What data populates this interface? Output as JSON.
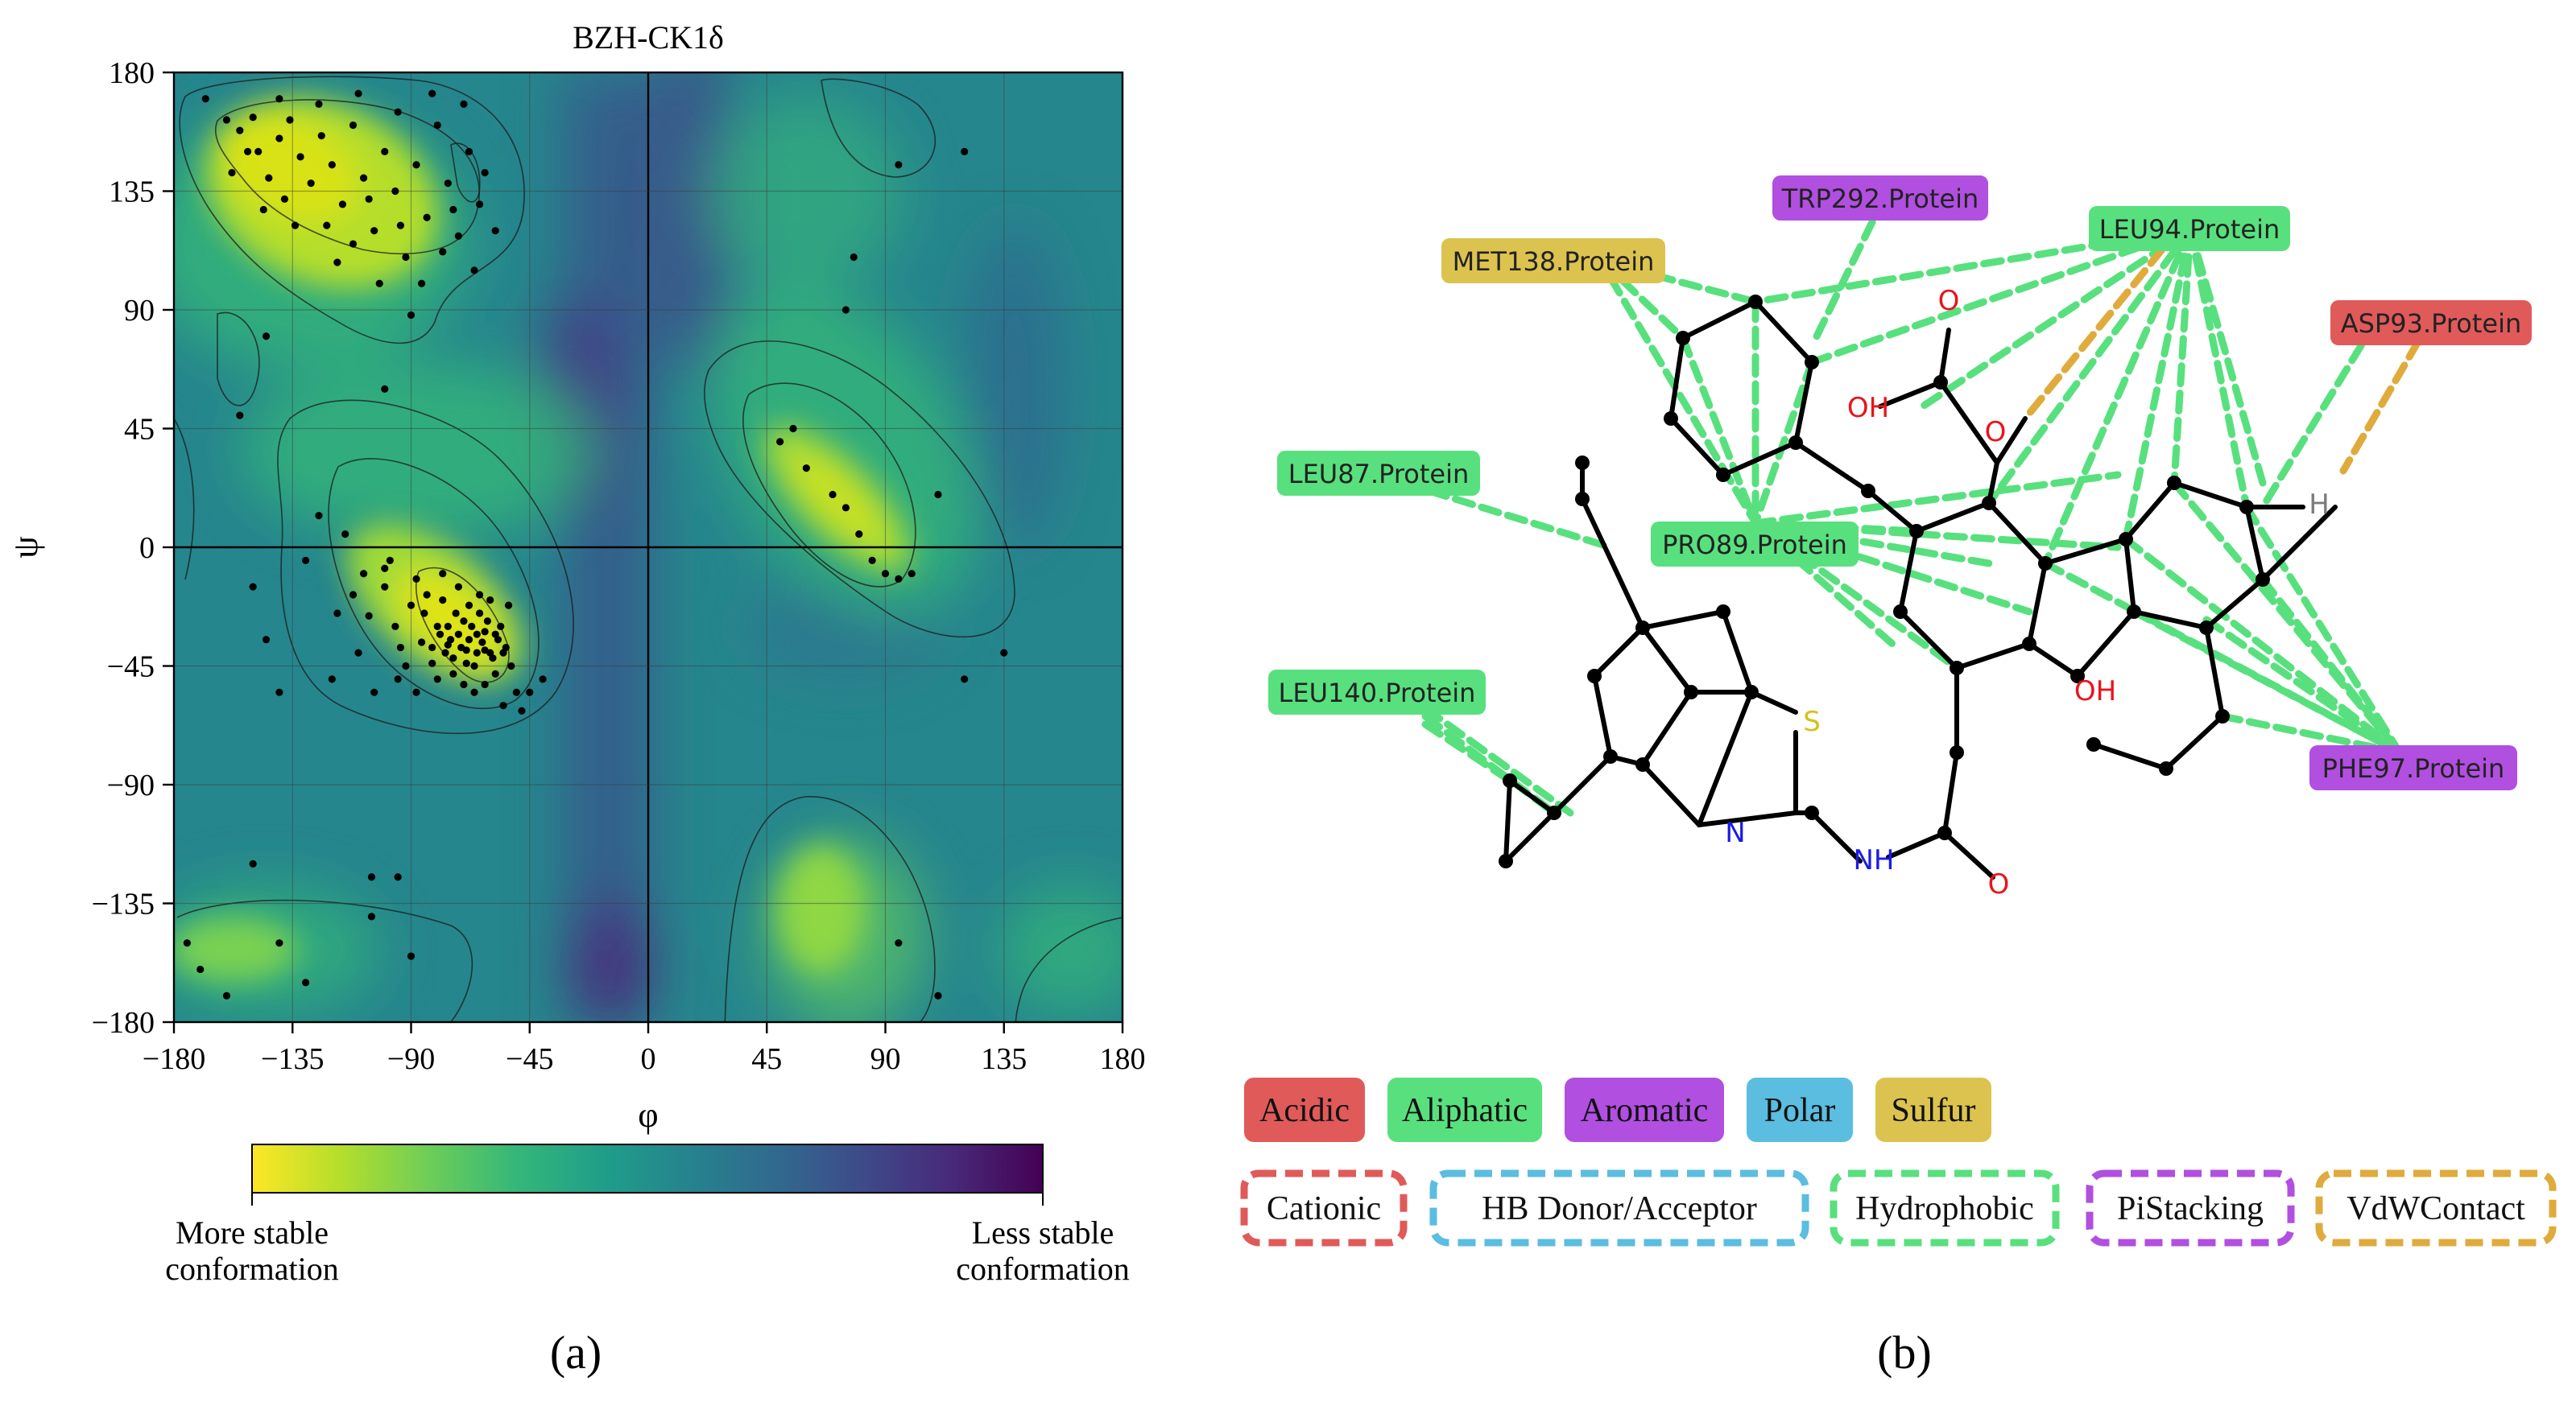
{
  "panel_a": {
    "title": "BZH-CK1δ",
    "caption": "(a)",
    "colorbar_left_label": [
      "More stable",
      "conformation"
    ],
    "colorbar_right_label": [
      "Less stable",
      "conformation"
    ],
    "colorbar_colors": [
      "#fde725",
      "#b5de2b",
      "#6ece58",
      "#35b779",
      "#1f9e89",
      "#26828e",
      "#31688e",
      "#3e4989",
      "#482878",
      "#440154"
    ],
    "chart_data": {
      "type": "scatter",
      "xlabel": "φ",
      "ylabel": "ψ",
      "xlim": [
        -180,
        180
      ],
      "ylim": [
        -180,
        180
      ],
      "xticks": [
        -180,
        -135,
        -90,
        -45,
        0,
        45,
        90,
        135,
        180
      ],
      "yticks": [
        -180,
        -135,
        -90,
        -45,
        0,
        45,
        90,
        135,
        180
      ],
      "xtick_labels": [
        "−180",
        "−135",
        "−90",
        "−45",
        "0",
        "45",
        "90",
        "135",
        "180"
      ],
      "ytick_labels": [
        "−180",
        "−135",
        "−90",
        "−45",
        "0",
        "45",
        "90",
        "135",
        "180"
      ],
      "grid": true,
      "points": [
        [
          -168,
          170
        ],
        [
          -160,
          162
        ],
        [
          -155,
          158
        ],
        [
          -150,
          163
        ],
        [
          -148,
          150
        ],
        [
          -144,
          140
        ],
        [
          -140,
          155
        ],
        [
          -136,
          162
        ],
        [
          -132,
          148
        ],
        [
          -128,
          138
        ],
        [
          -124,
          156
        ],
        [
          -120,
          145
        ],
        [
          -116,
          130
        ],
        [
          -112,
          160
        ],
        [
          -108,
          140
        ],
        [
          -104,
          120
        ],
        [
          -100,
          150
        ],
        [
          -96,
          135
        ],
        [
          -92,
          110
        ],
        [
          -88,
          145
        ],
        [
          -84,
          125
        ],
        [
          -80,
          160
        ],
        [
          -76,
          138
        ],
        [
          -72,
          118
        ],
        [
          -68,
          150
        ],
        [
          -64,
          130
        ],
        [
          -140,
          170
        ],
        [
          -125,
          168
        ],
        [
          -110,
          172
        ],
        [
          -95,
          165
        ],
        [
          -82,
          172
        ],
        [
          -70,
          168
        ],
        [
          -158,
          142
        ],
        [
          -146,
          128
        ],
        [
          -134,
          122
        ],
        [
          -118,
          108
        ],
        [
          -102,
          100
        ],
        [
          -90,
          88
        ],
        [
          -78,
          112
        ],
        [
          -62,
          142
        ],
        [
          -58,
          120
        ],
        [
          -66,
          105
        ],
        [
          -152,
          150
        ],
        [
          -138,
          132
        ],
        [
          -122,
          122
        ],
        [
          -106,
          132
        ],
        [
          -94,
          122
        ],
        [
          -86,
          100
        ],
        [
          -74,
          128
        ],
        [
          -112,
          115
        ],
        [
          -150,
          -15
        ],
        [
          -145,
          -35
        ],
        [
          -140,
          -55
        ],
        [
          -118,
          -25
        ],
        [
          -110,
          -40
        ],
        [
          -104,
          -55
        ],
        [
          -100,
          -15
        ],
        [
          -96,
          -30
        ],
        [
          -92,
          -45
        ],
        [
          -88,
          -12
        ],
        [
          -85,
          -25
        ],
        [
          -82,
          -38
        ],
        [
          -80,
          -50
        ],
        [
          -78,
          -20
        ],
        [
          -76,
          -30
        ],
        [
          -74,
          -42
        ],
        [
          -72,
          -15
        ],
        [
          -70,
          -28
        ],
        [
          -68,
          -35
        ],
        [
          -66,
          -45
        ],
        [
          -64,
          -25
        ],
        [
          -62,
          -32
        ],
        [
          -60,
          -40
        ],
        [
          -58,
          -48
        ],
        [
          -56,
          -30
        ],
        [
          -54,
          -38
        ],
        [
          -52,
          -45
        ],
        [
          -50,
          -55
        ],
        [
          -75,
          -35
        ],
        [
          -71,
          -38
        ],
        [
          -67,
          -30
        ],
        [
          -63,
          -36
        ],
        [
          -59,
          -42
        ],
        [
          -73,
          -25
        ],
        [
          -69,
          -44
        ],
        [
          -65,
          -40
        ],
        [
          -61,
          -28
        ],
        [
          -57,
          -35
        ],
        [
          -77,
          -40
        ],
        [
          -80,
          -30
        ],
        [
          -84,
          -18
        ],
        [
          -90,
          -22
        ],
        [
          -98,
          -5
        ],
        [
          -108,
          -10
        ],
        [
          -115,
          5
        ],
        [
          -125,
          12
        ],
        [
          -130,
          -5
        ],
        [
          -55,
          -60
        ],
        [
          -45,
          -55
        ],
        [
          -40,
          -50
        ],
        [
          -48,
          -62
        ],
        [
          -88,
          -55
        ],
        [
          -95,
          -50
        ],
        [
          -100,
          -8
        ],
        [
          -78,
          -10
        ],
        [
          -64,
          -18
        ],
        [
          -70,
          -52
        ],
        [
          -62,
          -52
        ],
        [
          -53,
          -22
        ],
        [
          -86,
          -36
        ],
        [
          -82,
          -44
        ],
        [
          -74,
          -48
        ],
        [
          -68,
          -22
        ],
        [
          -60,
          -20
        ],
        [
          -66,
          -55
        ],
        [
          -79,
          -33
        ],
        [
          -72,
          -33
        ],
        [
          -65,
          -33
        ],
        [
          -58,
          -33
        ],
        [
          -76,
          -37
        ],
        [
          -69,
          -39
        ],
        [
          -62,
          -39
        ],
        [
          -55,
          -40
        ],
        [
          -106,
          -26
        ],
        [
          -112,
          -18
        ],
        [
          -94,
          -38
        ],
        [
          50,
          40
        ],
        [
          60,
          30
        ],
        [
          70,
          20
        ],
        [
          80,
          5
        ],
        [
          85,
          -5
        ],
        [
          90,
          -10
        ],
        [
          95,
          -12
        ],
        [
          100,
          -10
        ],
        [
          110,
          20
        ],
        [
          55,
          45
        ],
        [
          75,
          15
        ],
        [
          120,
          -50
        ],
        [
          135,
          -40
        ],
        [
          78,
          110
        ],
        [
          95,
          145
        ],
        [
          75,
          90
        ],
        [
          120,
          150
        ],
        [
          -145,
          80
        ],
        [
          -120,
          -50
        ],
        [
          -150,
          -120
        ],
        [
          -140,
          -150
        ],
        [
          -105,
          -140
        ],
        [
          -95,
          -125
        ],
        [
          -130,
          -165
        ],
        [
          -160,
          -170
        ],
        [
          -170,
          -160
        ],
        [
          95,
          -150
        ],
        [
          110,
          -170
        ],
        [
          -175,
          -150
        ],
        [
          -100,
          60
        ],
        [
          -155,
          50
        ],
        [
          -105,
          -125
        ],
        [
          -90,
          -155
        ]
      ]
    }
  },
  "panel_b": {
    "caption": "(b)",
    "residues": {
      "trp292": {
        "label": "TRP292.Protein",
        "color": "#b14fe0"
      },
      "leu94": {
        "label": "LEU94.Protein",
        "color": "#58e07e"
      },
      "met138": {
        "label": "MET138.Protein",
        "color": "#dcc34f"
      },
      "asp93": {
        "label": "ASP93.Protein",
        "color": "#e05a5a"
      },
      "leu87": {
        "label": "LEU87.Protein",
        "color": "#58e07e"
      },
      "pro89": {
        "label": "PRO89.Protein",
        "color": "#58e07e"
      },
      "leu140": {
        "label": "LEU140.Protein",
        "color": "#58e07e"
      },
      "phe97": {
        "label": "PHE97.Protein",
        "color": "#b14fe0"
      }
    },
    "atoms": {
      "o_top": "O",
      "oh_acid": "OH",
      "o_ester": "O",
      "h": "H",
      "s": "S",
      "n": "N",
      "nh": "NH",
      "o_amide": "O",
      "oh_ring": "OH"
    },
    "legend_residue_types": [
      {
        "label": "Acidic",
        "color": "#e05a5a"
      },
      {
        "label": "Aliphatic",
        "color": "#58e07e"
      },
      {
        "label": "Aromatic",
        "color": "#b14fe0"
      },
      {
        "label": "Polar",
        "color": "#5bbde0"
      },
      {
        "label": "Sulfur",
        "color": "#dcc34f"
      }
    ],
    "legend_interactions": [
      {
        "label": "Cationic",
        "color": "#e05a5a"
      },
      {
        "label": "HB Donor/Acceptor",
        "color": "#5bbde0"
      },
      {
        "label": "Hydrophobic",
        "color": "#58e07e"
      },
      {
        "label": "PiStacking",
        "color": "#b14fe0"
      },
      {
        "label": "VdWContact",
        "color": "#dfab3d"
      }
    ]
  }
}
